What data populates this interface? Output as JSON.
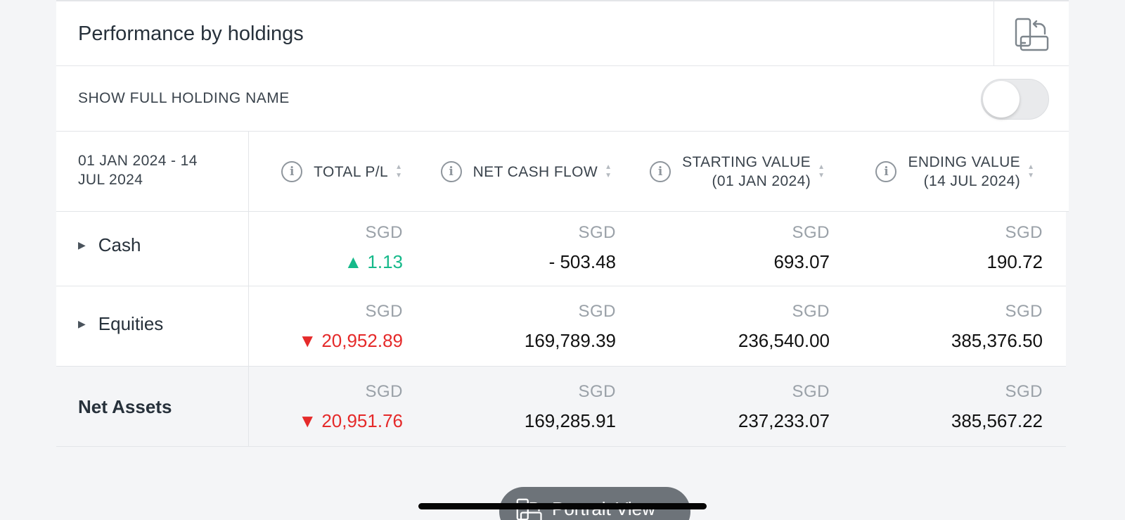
{
  "header": {
    "title": "Performance by holdings",
    "rotate_icon": "rotate-device-icon"
  },
  "toggle": {
    "label": "SHOW FULL HOLDING NAME",
    "state": "off"
  },
  "table": {
    "period_line1": "01 JAN 2024 - 14",
    "period_line2": "JUL 2024",
    "columns": [
      {
        "label": "TOTAL P/L",
        "label2": ""
      },
      {
        "label": "NET CASH FLOW",
        "label2": ""
      },
      {
        "label": "STARTING VALUE",
        "label2": "(01 JAN 2024)"
      },
      {
        "label": "ENDING VALUE",
        "label2": "(14 JUL 2024)"
      }
    ],
    "rows": [
      {
        "label": "Cash",
        "cells": [
          {
            "currency": "SGD",
            "value": "▲ 1.13",
            "trend": "up"
          },
          {
            "currency": "SGD",
            "value": "- 503.48"
          },
          {
            "currency": "SGD",
            "value": "693.07"
          },
          {
            "currency": "SGD",
            "value": "190.72"
          }
        ]
      },
      {
        "label": "Equities",
        "cells": [
          {
            "currency": "SGD",
            "value": "▼ 20,952.89",
            "trend": "down"
          },
          {
            "currency": "SGD",
            "value": "169,789.39"
          },
          {
            "currency": "SGD",
            "value": "236,540.00"
          },
          {
            "currency": "SGD",
            "value": "385,376.50"
          }
        ]
      }
    ],
    "total": {
      "label": "Net Assets",
      "cells": [
        {
          "currency": "SGD",
          "value": "▼ 20,951.76",
          "trend": "down"
        },
        {
          "currency": "SGD",
          "value": "169,285.91"
        },
        {
          "currency": "SGD",
          "value": "237,233.07"
        },
        {
          "currency": "SGD",
          "value": "385,567.22"
        }
      ]
    }
  },
  "footer": {
    "button_label": "Portrait View"
  },
  "colors": {
    "up": "#16b98a",
    "down": "#e52a2a",
    "pill": "#6d7379"
  }
}
